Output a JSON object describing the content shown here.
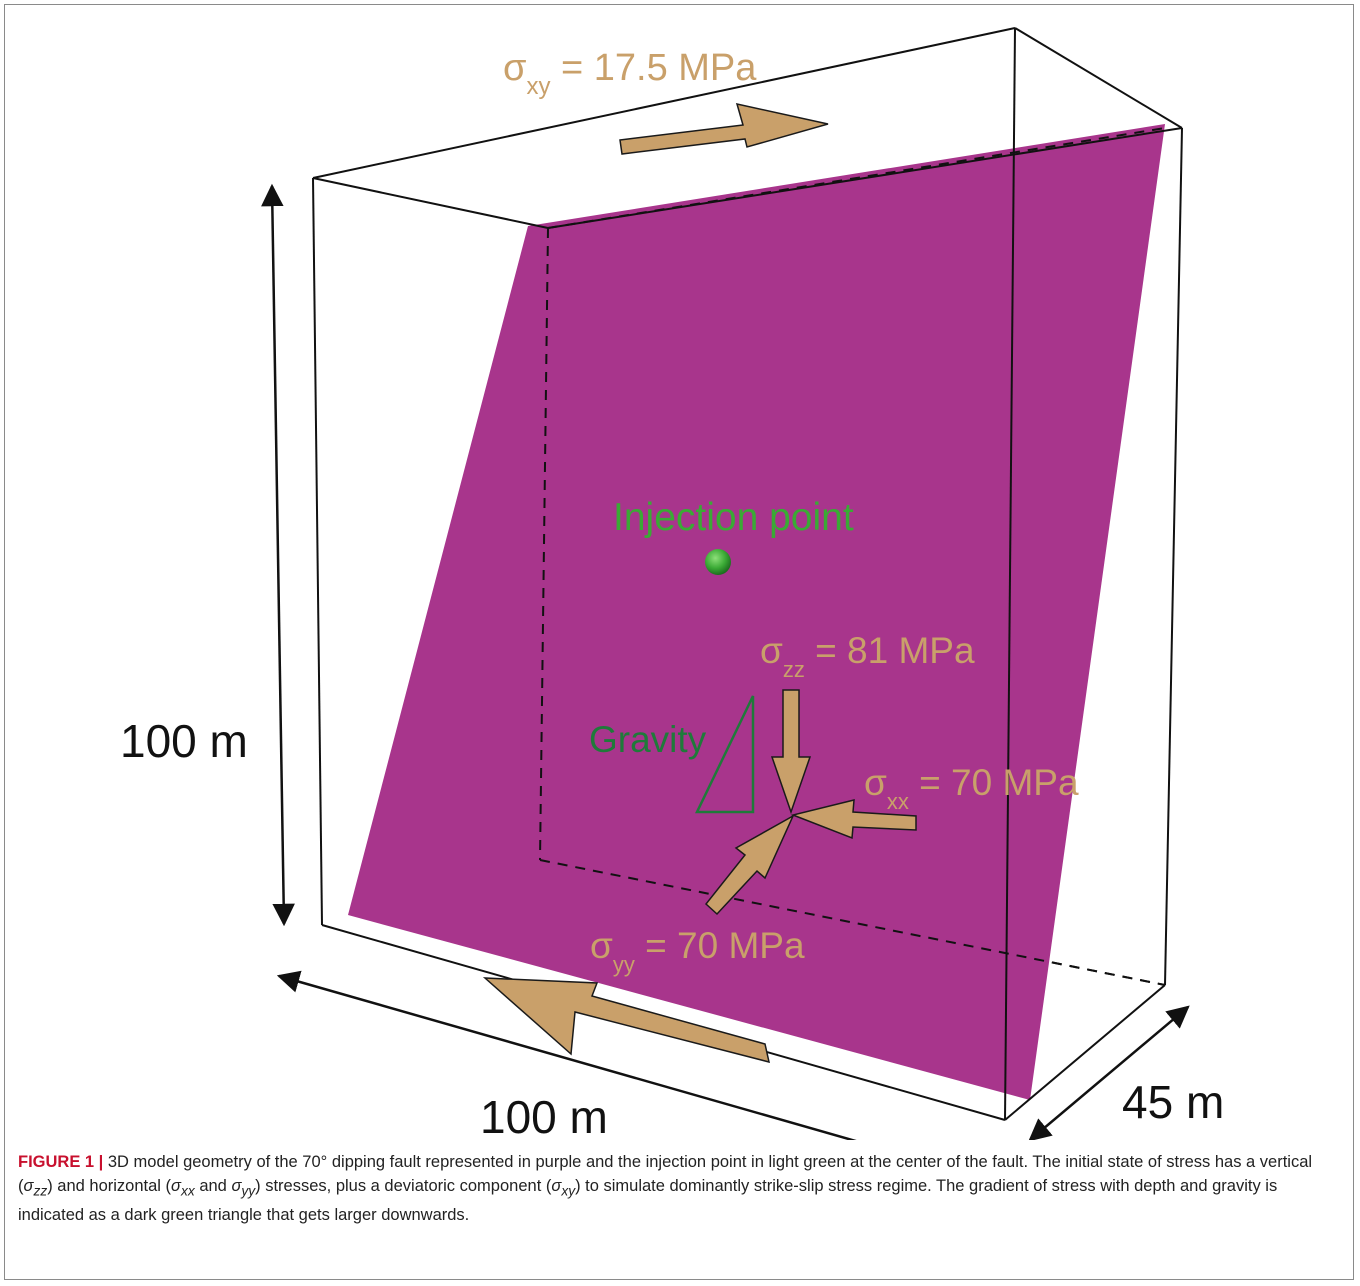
{
  "figure": {
    "labels": {
      "sxy": {
        "sym": "σ",
        "sub": "xy",
        "rest": " = 17.5 MPa"
      },
      "szz": {
        "sym": "σ",
        "sub": "zz",
        "rest": " = 81 MPa"
      },
      "sxx": {
        "sym": "σ",
        "sub": "xx",
        "rest": " = 70 MPa"
      },
      "syy": {
        "sym": "σ",
        "sub": "yy",
        "rest": " = 70 MPa"
      },
      "injection": "Injection point",
      "gravity": "Gravity",
      "height": "100 m",
      "length": "100 m",
      "width": "45 m"
    },
    "colors": {
      "fault": "#a8358c",
      "stress_arrow": "#c9a06a",
      "injection": "#3aaa35",
      "gravity": "#1f7a3a",
      "outline": "#111111"
    }
  },
  "caption": {
    "label": "FIGURE 1 |",
    "p1": " 3D model geometry of the 70° dipping fault represented in purple and the injection point in light green at the center of the fault. The initial state of stress has a vertical (",
    "s1": "σ",
    "s1sub": "zz",
    "p2": ") and horizontal (",
    "s2": "σ",
    "s2sub": "xx",
    "p3": " and ",
    "s3": "σ",
    "s3sub": "yy",
    "p4": ") stresses, plus a deviatoric component (",
    "s4": "σ",
    "s4sub": "xy",
    "p5": ") to simulate dominantly strike-slip stress regime. The gradient of stress with depth and gravity is indicated as a dark green triangle that gets larger downwards."
  }
}
